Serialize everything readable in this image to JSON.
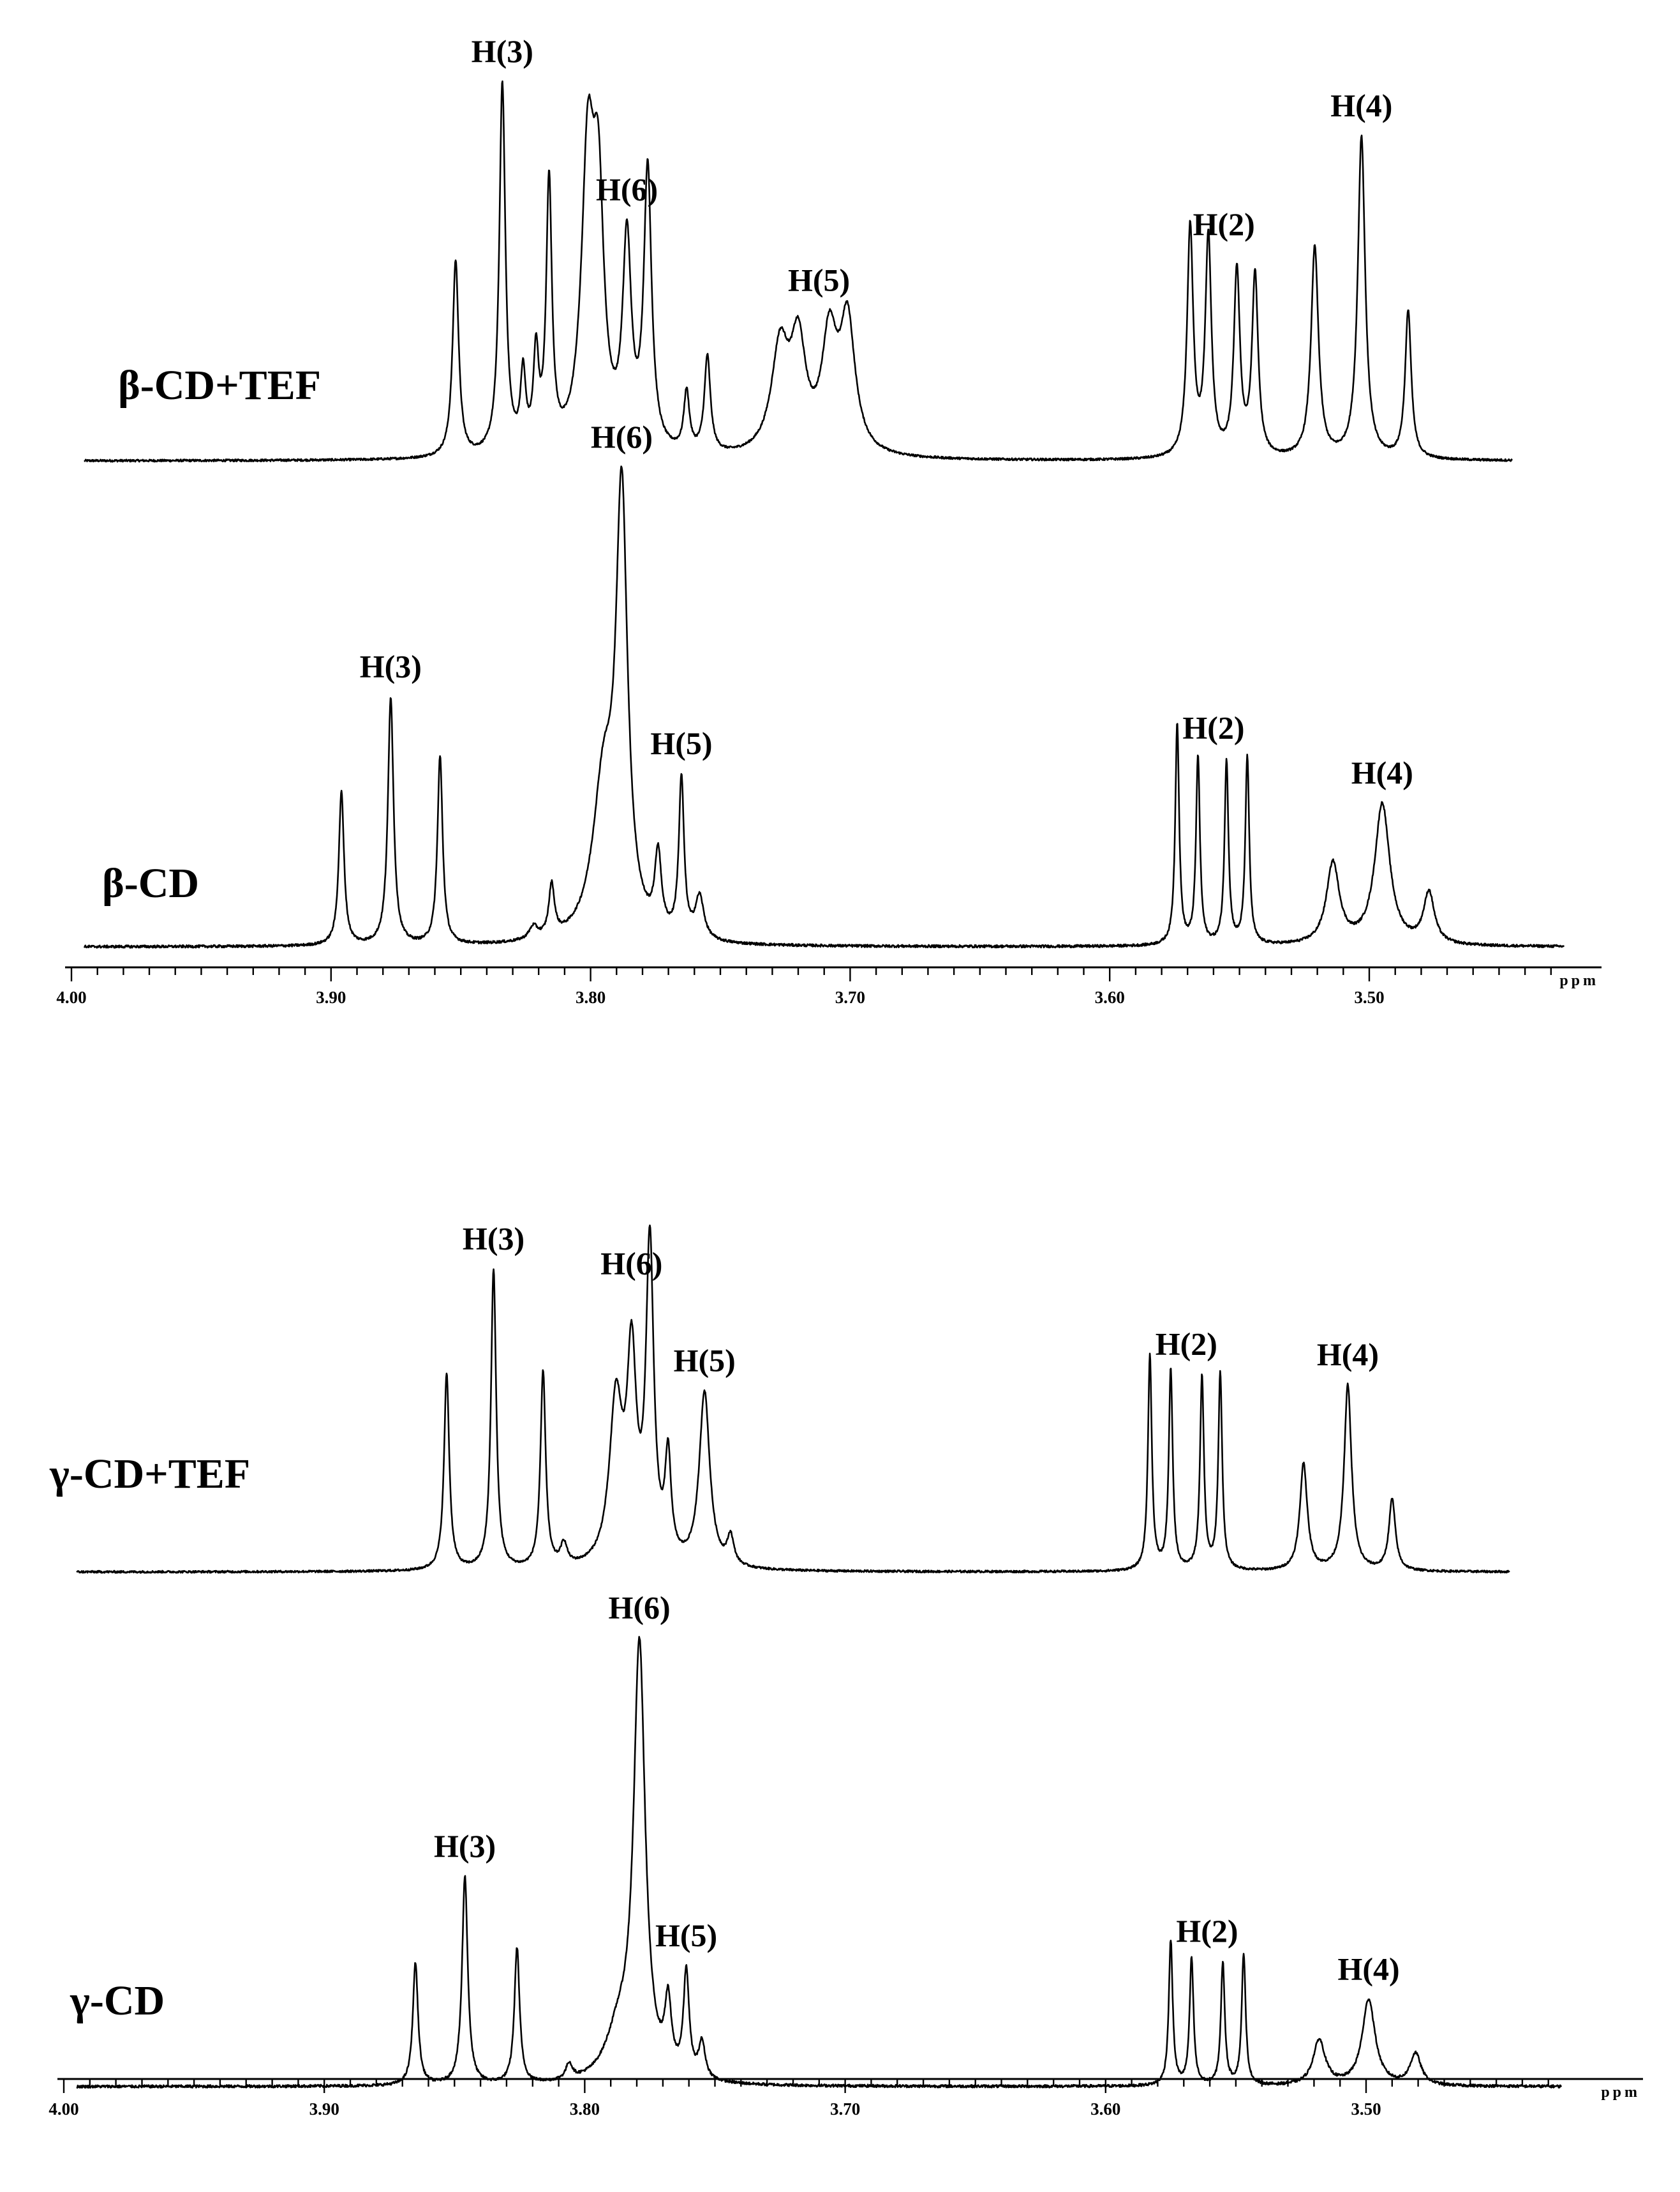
{
  "unit_label": "ppm",
  "chart_data": [
    {
      "type": "line",
      "xlabel": "ppm",
      "xlim": [
        4.0,
        3.425
      ],
      "x_reversed": true,
      "tick_labels": [
        "4.00",
        "3.90",
        "3.80",
        "3.70",
        "3.60",
        "3.50"
      ],
      "spectra": [
        {
          "name": "β-CD+TEF",
          "x_range": [
            3.995,
            3.445
          ],
          "peaks": [
            {
              "x": 3.852,
              "h": 0.53,
              "w": 0.0014
            },
            {
              "x": 3.834,
              "h": 1.0,
              "w": 0.0014
            },
            {
              "x": 3.826,
              "h": 0.2,
              "w": 0.0012
            },
            {
              "x": 3.821,
              "h": 0.25,
              "w": 0.0012
            },
            {
              "x": 3.816,
              "h": 0.72,
              "w": 0.0013
            },
            {
              "x": 3.801,
              "h": 0.78,
              "w": 0.003
            },
            {
              "x": 3.797,
              "h": 0.6,
              "w": 0.0025
            },
            {
              "x": 3.786,
              "h": 0.55,
              "w": 0.002
            },
            {
              "x": 3.778,
              "h": 0.75,
              "w": 0.0018
            },
            {
              "x": 3.763,
              "h": 0.16,
              "w": 0.0013
            },
            {
              "x": 3.755,
              "h": 0.26,
              "w": 0.0014
            },
            {
              "x": 3.727,
              "h": 0.28,
              "w": 0.004
            },
            {
              "x": 3.72,
              "h": 0.28,
              "w": 0.0035
            },
            {
              "x": 3.708,
              "h": 0.3,
              "w": 0.0035
            },
            {
              "x": 3.701,
              "h": 0.35,
              "w": 0.0035
            },
            {
              "x": 3.569,
              "h": 0.62,
              "w": 0.0014
            },
            {
              "x": 3.562,
              "h": 0.59,
              "w": 0.0014
            },
            {
              "x": 3.551,
              "h": 0.5,
              "w": 0.0014
            },
            {
              "x": 3.544,
              "h": 0.49,
              "w": 0.0014
            },
            {
              "x": 3.521,
              "h": 0.57,
              "w": 0.0017
            },
            {
              "x": 3.503,
              "h": 0.87,
              "w": 0.0017
            },
            {
              "x": 3.485,
              "h": 0.4,
              "w": 0.0014
            }
          ]
        },
        {
          "name": "β-CD",
          "x_range": [
            3.995,
            3.425
          ],
          "peaks": [
            {
              "x": 3.896,
              "h": 0.36,
              "w": 0.0012
            },
            {
              "x": 3.877,
              "h": 0.58,
              "w": 0.0013
            },
            {
              "x": 3.858,
              "h": 0.44,
              "w": 0.0012
            },
            {
              "x": 3.822,
              "h": 0.03,
              "w": 0.002
            },
            {
              "x": 3.815,
              "h": 0.12,
              "w": 0.0013
            },
            {
              "x": 3.795,
              "h": 0.35,
              "w": 0.005
            },
            {
              "x": 3.788,
              "h": 1.0,
              "w": 0.0027
            },
            {
              "x": 3.774,
              "h": 0.18,
              "w": 0.0015
            },
            {
              "x": 3.765,
              "h": 0.37,
              "w": 0.0012
            },
            {
              "x": 3.758,
              "h": 0.1,
              "w": 0.002
            },
            {
              "x": 3.574,
              "h": 0.52,
              "w": 0.0009
            },
            {
              "x": 3.566,
              "h": 0.44,
              "w": 0.0009
            },
            {
              "x": 3.555,
              "h": 0.43,
              "w": 0.0009
            },
            {
              "x": 3.547,
              "h": 0.44,
              "w": 0.0009
            },
            {
              "x": 3.514,
              "h": 0.19,
              "w": 0.003
            },
            {
              "x": 3.495,
              "h": 0.33,
              "w": 0.0035
            },
            {
              "x": 3.477,
              "h": 0.12,
              "w": 0.0025
            }
          ]
        },
        {
          "name": "γ-CD+TEF",
          "x_range": [
            3.995,
            3.445
          ],
          "peaks": [
            {
              "x": 3.853,
              "h": 0.55,
              "w": 0.0012
            },
            {
              "x": 3.835,
              "h": 0.84,
              "w": 0.0012
            },
            {
              "x": 3.816,
              "h": 0.55,
              "w": 0.0012
            },
            {
              "x": 3.808,
              "h": 0.06,
              "w": 0.0015
            },
            {
              "x": 3.788,
              "h": 0.45,
              "w": 0.003
            },
            {
              "x": 3.782,
              "h": 0.55,
              "w": 0.0022
            },
            {
              "x": 3.775,
              "h": 0.88,
              "w": 0.0018
            },
            {
              "x": 3.768,
              "h": 0.28,
              "w": 0.0014
            },
            {
              "x": 3.754,
              "h": 0.49,
              "w": 0.0024
            },
            {
              "x": 3.744,
              "h": 0.08,
              "w": 0.0015
            },
            {
              "x": 3.583,
              "h": 0.6,
              "w": 0.0009
            },
            {
              "x": 3.575,
              "h": 0.56,
              "w": 0.0009
            },
            {
              "x": 3.563,
              "h": 0.54,
              "w": 0.0009
            },
            {
              "x": 3.556,
              "h": 0.55,
              "w": 0.0009
            },
            {
              "x": 3.524,
              "h": 0.3,
              "w": 0.0017
            },
            {
              "x": 3.507,
              "h": 0.52,
              "w": 0.0017
            },
            {
              "x": 3.49,
              "h": 0.2,
              "w": 0.0015
            }
          ]
        },
        {
          "name": "γ-CD",
          "x_range": [
            3.995,
            3.425
          ],
          "peaks": [
            {
              "x": 3.865,
              "h": 0.27,
              "w": 0.0012
            },
            {
              "x": 3.846,
              "h": 0.46,
              "w": 0.0013
            },
            {
              "x": 3.826,
              "h": 0.3,
              "w": 0.0012
            },
            {
              "x": 3.806,
              "h": 0.035,
              "w": 0.0015
            },
            {
              "x": 3.787,
              "h": 0.1,
              "w": 0.006
            },
            {
              "x": 3.779,
              "h": 0.95,
              "w": 0.0027
            },
            {
              "x": 3.768,
              "h": 0.15,
              "w": 0.0015
            },
            {
              "x": 3.761,
              "h": 0.23,
              "w": 0.0013
            },
            {
              "x": 3.755,
              "h": 0.08,
              "w": 0.0015
            },
            {
              "x": 3.575,
              "h": 0.32,
              "w": 0.0009
            },
            {
              "x": 3.567,
              "h": 0.28,
              "w": 0.0009
            },
            {
              "x": 3.555,
              "h": 0.27,
              "w": 0.0009
            },
            {
              "x": 3.547,
              "h": 0.29,
              "w": 0.0009
            },
            {
              "x": 3.518,
              "h": 0.1,
              "w": 0.0028
            },
            {
              "x": 3.499,
              "h": 0.19,
              "w": 0.003
            },
            {
              "x": 3.481,
              "h": 0.07,
              "w": 0.0025
            }
          ]
        }
      ],
      "annotations": [
        {
          "spectrum": 0,
          "label": "H(3)",
          "x": 3.834
        },
        {
          "spectrum": 0,
          "label": "H(6)",
          "x": 3.786
        },
        {
          "spectrum": 0,
          "label": "H(5)",
          "x": 3.712
        },
        {
          "spectrum": 0,
          "label": "H(2)",
          "x": 3.556
        },
        {
          "spectrum": 0,
          "label": "H(4)",
          "x": 3.503
        },
        {
          "spectrum": 1,
          "label": "H(3)",
          "x": 3.877
        },
        {
          "spectrum": 1,
          "label": "H(6)",
          "x": 3.788
        },
        {
          "spectrum": 1,
          "label": "H(5)",
          "x": 3.765
        },
        {
          "spectrum": 1,
          "label": "H(2)",
          "x": 3.56
        },
        {
          "spectrum": 1,
          "label": "H(4)",
          "x": 3.495
        },
        {
          "spectrum": 2,
          "label": "H(3)",
          "x": 3.835
        },
        {
          "spectrum": 2,
          "label": "H(6)",
          "x": 3.782
        },
        {
          "spectrum": 2,
          "label": "H(5)",
          "x": 3.754
        },
        {
          "spectrum": 2,
          "label": "H(2)",
          "x": 3.569
        },
        {
          "spectrum": 2,
          "label": "H(4)",
          "x": 3.507
        },
        {
          "spectrum": 3,
          "label": "H(3)",
          "x": 3.846
        },
        {
          "spectrum": 3,
          "label": "H(6)",
          "x": 3.779
        },
        {
          "spectrum": 3,
          "label": "H(5)",
          "x": 3.761
        },
        {
          "spectrum": 3,
          "label": "H(2)",
          "x": 3.561
        },
        {
          "spectrum": 3,
          "label": "H(4)",
          "x": 3.499
        }
      ]
    }
  ]
}
